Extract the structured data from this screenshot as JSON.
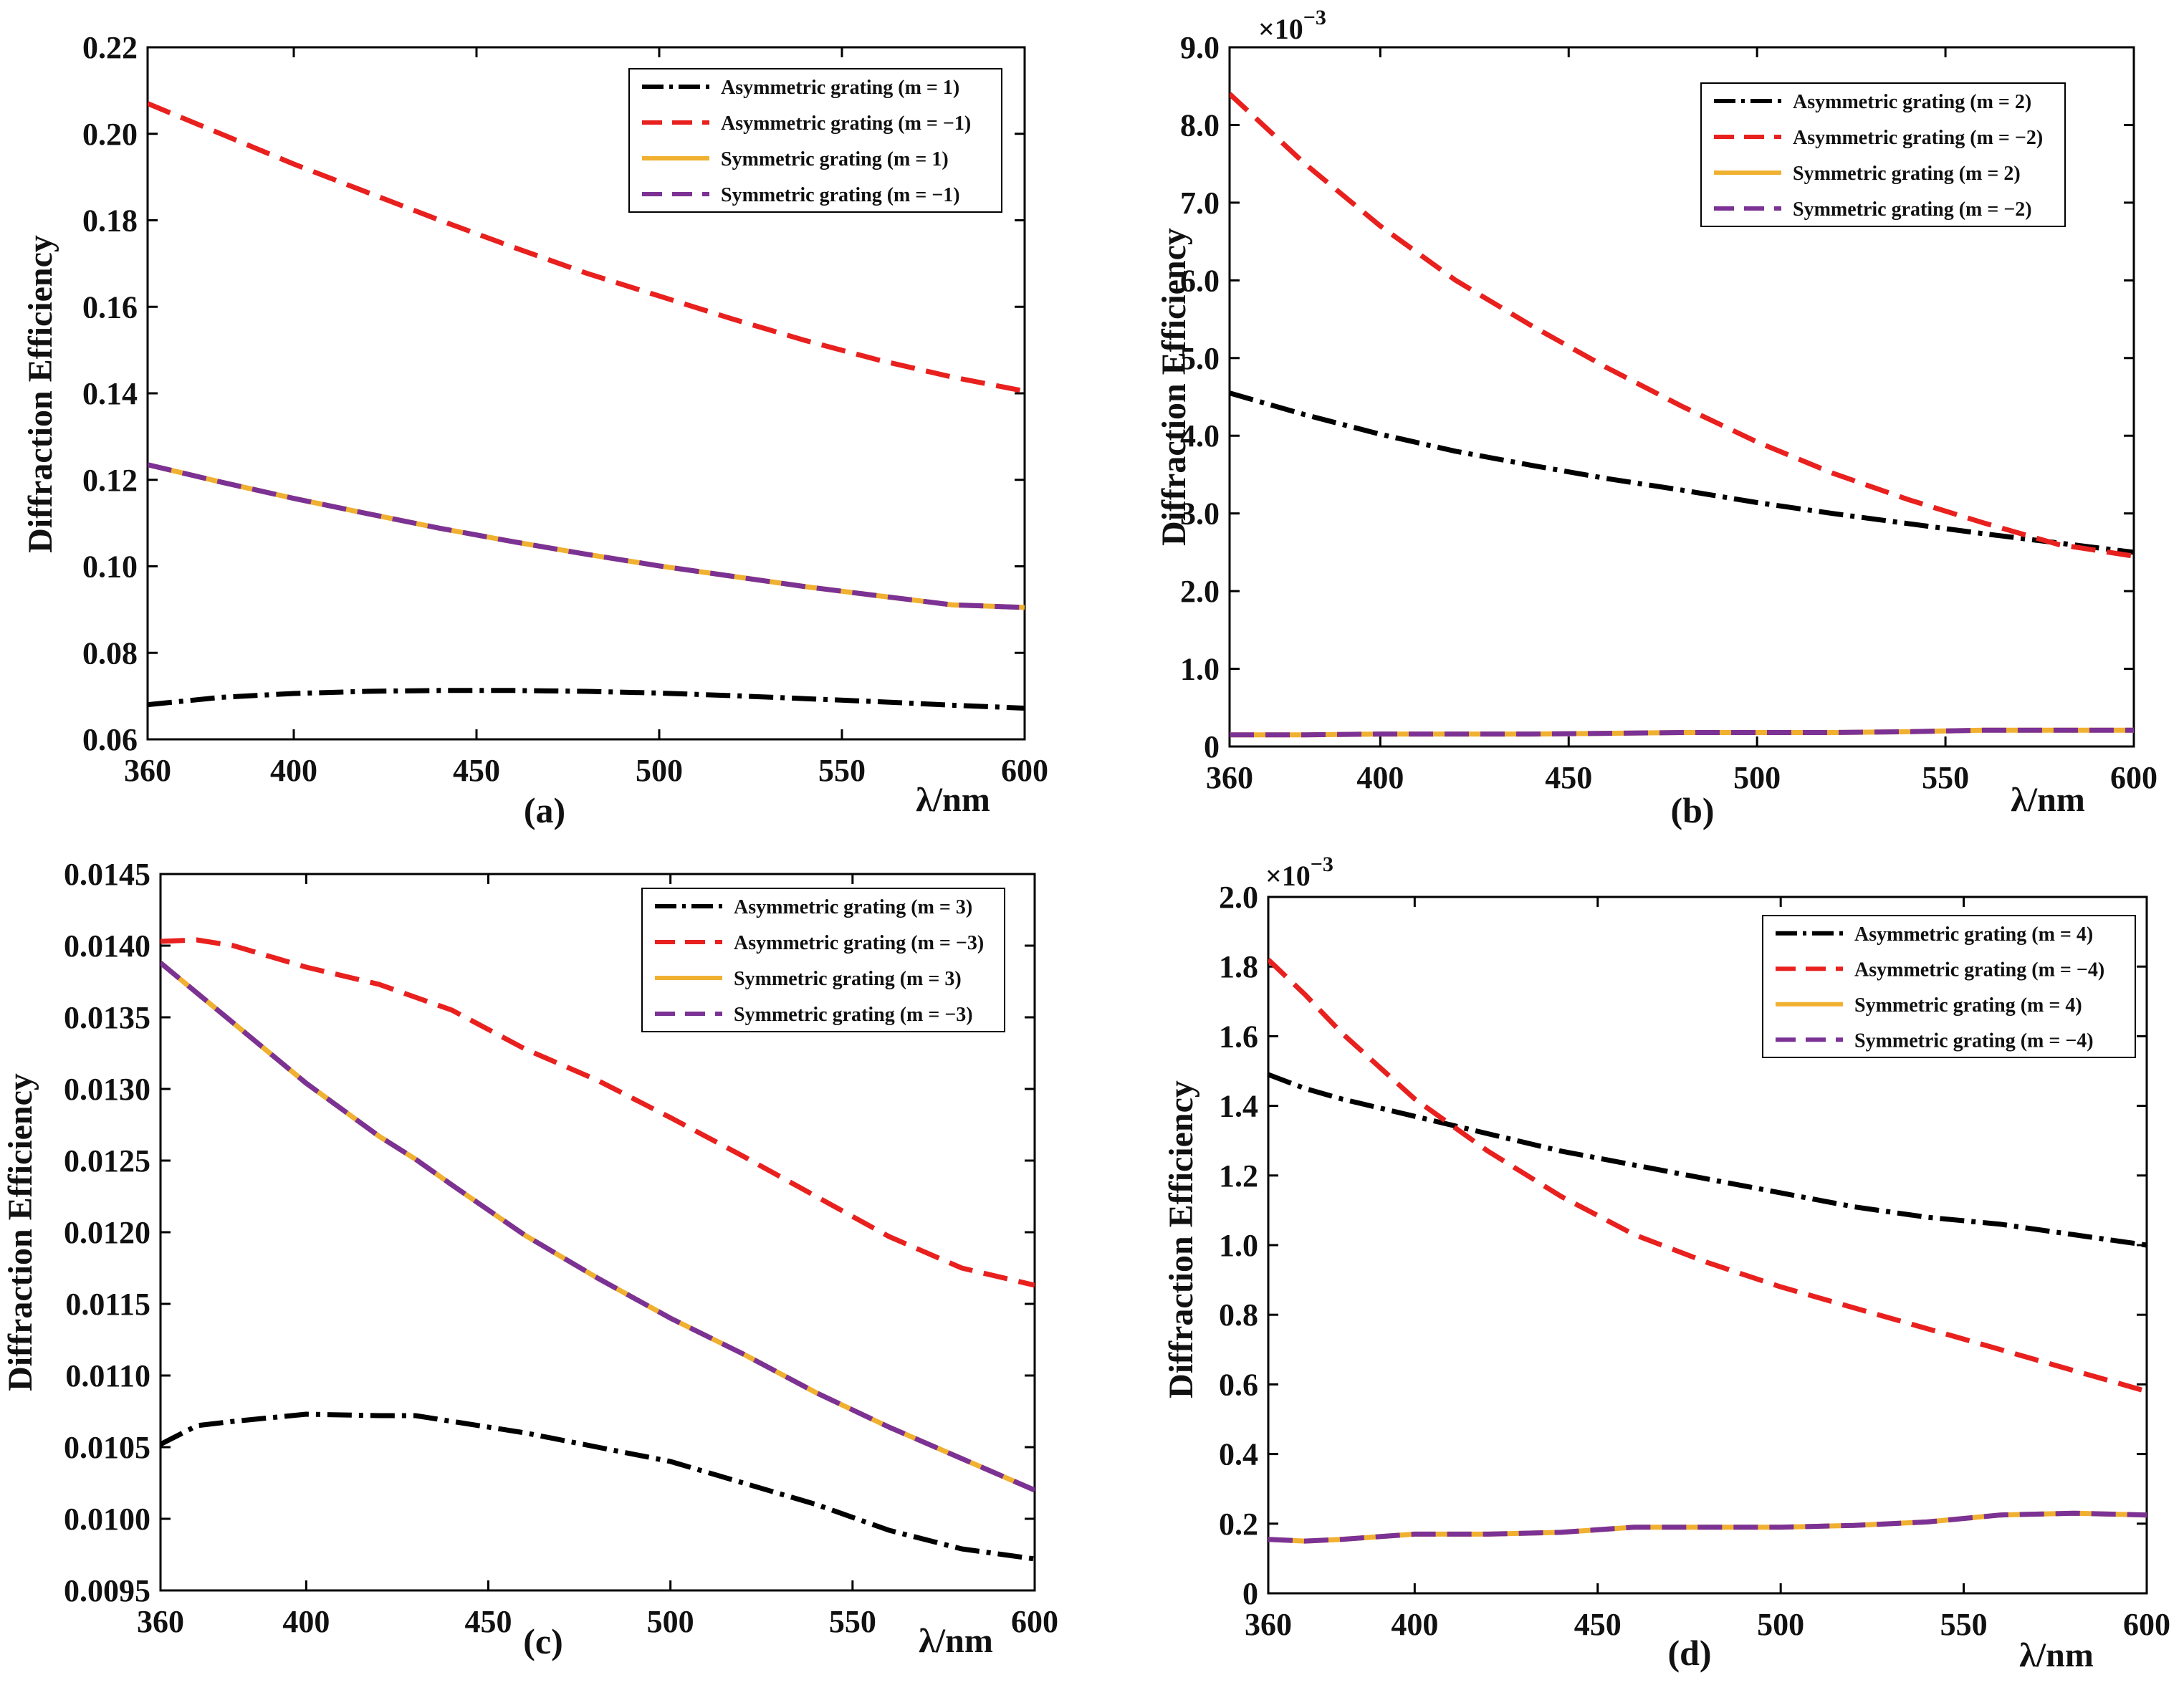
{
  "figure": {
    "colors": {
      "asym_pos": "#000000",
      "asym_neg": "#e8201e",
      "sym_pos": "#f0b030",
      "sym_neg": "#7b3294",
      "axis": "#000000"
    },
    "common_xlabel": "λ/nm"
  },
  "chart_data": [
    {
      "id": "a",
      "type": "line",
      "panel_label": "(a)",
      "xlabel": "λ/nm",
      "ylabel": "Diffraction Efficiency",
      "exponent_label": "",
      "xlim": [
        360,
        600
      ],
      "ylim": [
        0.06,
        0.22
      ],
      "xticks": [
        360,
        400,
        450,
        500,
        550,
        600
      ],
      "yticks": [
        0.06,
        0.08,
        0.1,
        0.12,
        0.14,
        0.16,
        0.18,
        0.2,
        0.22
      ],
      "ytick_labels": [
        "0.06",
        "0.08",
        "0.10",
        "0.12",
        "0.14",
        "0.16",
        "0.18",
        "0.20",
        "0.22"
      ],
      "legend_position": "top-right",
      "x": [
        360,
        380,
        400,
        420,
        440,
        460,
        480,
        500,
        520,
        540,
        560,
        580,
        600
      ],
      "series": [
        {
          "name": "Asymmetric grating (m = 1)",
          "style": "dashdot",
          "color": "#000000",
          "values": [
            0.068,
            0.0697,
            0.0706,
            0.0711,
            0.0713,
            0.0713,
            0.0711,
            0.0707,
            0.0701,
            0.0694,
            0.0687,
            0.0679,
            0.0672
          ]
        },
        {
          "name": "Asymmetric grating (m = −1)",
          "style": "dashed",
          "color": "#e8201e",
          "values": [
            0.207,
            0.2,
            0.193,
            0.1865,
            0.18,
            0.1738,
            0.1678,
            0.1625,
            0.1572,
            0.1522,
            0.1477,
            0.1438,
            0.1405
          ]
        },
        {
          "name": "Symmetric grating (m = 1)",
          "style": "solid",
          "color": "#f0b030",
          "values": [
            0.1235,
            0.1195,
            0.1157,
            0.1122,
            0.1088,
            0.1057,
            0.1028,
            0.1001,
            0.0977,
            0.0953,
            0.0932,
            0.0911,
            0.0905
          ]
        },
        {
          "name": "Symmetric grating (m = −1)",
          "style": "dashed",
          "color": "#7b3294",
          "values": [
            0.1235,
            0.1195,
            0.1157,
            0.1122,
            0.1088,
            0.1057,
            0.1028,
            0.1001,
            0.0977,
            0.0953,
            0.0932,
            0.0911,
            0.0905
          ]
        }
      ]
    },
    {
      "id": "b",
      "type": "line",
      "panel_label": "(b)",
      "xlabel": "λ/nm",
      "ylabel": "Diffraction Efficiency",
      "exponent_label": "×10",
      "exponent_power": "−3",
      "xlim": [
        360,
        600
      ],
      "ylim": [
        0,
        9.0
      ],
      "xticks": [
        360,
        400,
        450,
        500,
        550,
        600
      ],
      "yticks": [
        0,
        1,
        2,
        3,
        4,
        5,
        6,
        7,
        8,
        9
      ],
      "ytick_labels": [
        "0",
        "1.0",
        "2.0",
        "3.0",
        "4.0",
        "5.0",
        "6.0",
        "7.0",
        "8.0",
        "9.0"
      ],
      "legend_position": "top-right",
      "x": [
        360,
        380,
        400,
        420,
        440,
        460,
        480,
        500,
        520,
        540,
        560,
        580,
        600
      ],
      "series": [
        {
          "name": "Asymmetric grating (m = 2)",
          "style": "dashdot",
          "color": "#000000",
          "values": [
            4.55,
            4.27,
            4.02,
            3.8,
            3.62,
            3.45,
            3.3,
            3.14,
            3.0,
            2.87,
            2.74,
            2.62,
            2.5
          ]
        },
        {
          "name": "Asymmetric grating (m = −2)",
          "style": "dashed",
          "color": "#e8201e",
          "values": [
            8.4,
            7.5,
            6.7,
            6.0,
            5.42,
            4.88,
            4.38,
            3.92,
            3.52,
            3.18,
            2.88,
            2.6,
            2.45
          ]
        },
        {
          "name": "Symmetric grating (m = 2)",
          "style": "solid",
          "color": "#f0b030",
          "values": [
            0.15,
            0.15,
            0.16,
            0.16,
            0.16,
            0.17,
            0.18,
            0.18,
            0.18,
            0.19,
            0.21,
            0.21,
            0.21
          ]
        },
        {
          "name": "Symmetric grating (m = −2)",
          "style": "dashed",
          "color": "#7b3294",
          "values": [
            0.15,
            0.15,
            0.16,
            0.16,
            0.16,
            0.17,
            0.18,
            0.18,
            0.18,
            0.19,
            0.21,
            0.21,
            0.21
          ]
        }
      ]
    },
    {
      "id": "c",
      "type": "line",
      "panel_label": "(c)",
      "xlabel": "λ/nm",
      "ylabel": "Diffraction Efficiency",
      "exponent_label": "",
      "xlim": [
        360,
        600
      ],
      "ylim": [
        0.0095,
        0.0145
      ],
      "xticks": [
        360,
        400,
        450,
        500,
        550,
        600
      ],
      "yticks": [
        0.0095,
        0.01,
        0.0105,
        0.011,
        0.0115,
        0.012,
        0.0125,
        0.013,
        0.0135,
        0.014,
        0.0145
      ],
      "ytick_labels": [
        "0.0095",
        "0.0100",
        "0.0105",
        "0.0110",
        "0.0115",
        "0.0120",
        "0.0125",
        "0.0130",
        "0.0135",
        "0.0140",
        "0.0145"
      ],
      "legend_position": "top-right",
      "x": [
        360,
        370,
        380,
        400,
        420,
        430,
        440,
        460,
        480,
        500,
        520,
        540,
        560,
        580,
        600
      ],
      "series": [
        {
          "name": "Asymmetric grating (m = 3)",
          "style": "dashdot",
          "color": "#000000",
          "values": [
            0.01052,
            0.01065,
            0.01068,
            0.01073,
            0.01072,
            0.01072,
            0.01068,
            0.0106,
            0.0105,
            0.0104,
            0.01025,
            0.0101,
            0.00992,
            0.00979,
            0.00972
          ]
        },
        {
          "name": "Asymmetric grating (m = −3)",
          "style": "dashed",
          "color": "#e8201e",
          "values": [
            0.01403,
            0.01404,
            0.014,
            0.01385,
            0.01373,
            0.01364,
            0.01355,
            0.01328,
            0.01306,
            0.0128,
            0.01253,
            0.01225,
            0.01197,
            0.01175,
            0.01163
          ]
        },
        {
          "name": "Symmetric grating (m = 3)",
          "style": "solid",
          "color": "#f0b030",
          "values": [
            0.01388,
            0.01367,
            0.01346,
            0.01304,
            0.01267,
            0.01251,
            0.01233,
            0.01198,
            0.01168,
            0.0114,
            0.01115,
            0.01088,
            0.01064,
            0.01042,
            0.0102
          ]
        },
        {
          "name": "Symmetric grating (m = −3)",
          "style": "dashed",
          "color": "#7b3294",
          "values": [
            0.01388,
            0.01367,
            0.01346,
            0.01304,
            0.01267,
            0.01251,
            0.01233,
            0.01198,
            0.01168,
            0.0114,
            0.01115,
            0.01088,
            0.01064,
            0.01042,
            0.0102
          ]
        }
      ]
    },
    {
      "id": "d",
      "type": "line",
      "panel_label": "(d)",
      "xlabel": "λ/nm",
      "ylabel": "Diffraction Efficiency",
      "exponent_label": "×10",
      "exponent_power": "−3",
      "xlim": [
        360,
        600
      ],
      "ylim": [
        0,
        2.0
      ],
      "xticks": [
        360,
        400,
        450,
        500,
        550,
        600
      ],
      "yticks": [
        0,
        0.2,
        0.4,
        0.6,
        0.8,
        1.0,
        1.2,
        1.4,
        1.6,
        1.8,
        2.0
      ],
      "ytick_labels": [
        "0",
        "0.2",
        "0.4",
        "0.6",
        "0.8",
        "1.0",
        "1.2",
        "1.4",
        "1.6",
        "1.8",
        "2.0"
      ],
      "legend_position": "top-right",
      "x": [
        360,
        370,
        380,
        400,
        420,
        440,
        460,
        480,
        500,
        520,
        540,
        560,
        580,
        600
      ],
      "series": [
        {
          "name": "Asymmetric grating (m = 4)",
          "style": "dashdot",
          "color": "#000000",
          "values": [
            1.49,
            1.45,
            1.42,
            1.37,
            1.32,
            1.27,
            1.23,
            1.19,
            1.15,
            1.11,
            1.08,
            1.06,
            1.03,
            1.0
          ]
        },
        {
          "name": "Asymmetric grating (m = −4)",
          "style": "dashed",
          "color": "#e8201e",
          "values": [
            1.82,
            1.72,
            1.61,
            1.42,
            1.27,
            1.14,
            1.03,
            0.95,
            0.88,
            0.82,
            0.76,
            0.7,
            0.64,
            0.58
          ]
        },
        {
          "name": "Symmetric grating (m = 4)",
          "style": "solid",
          "color": "#f0b030",
          "values": [
            0.155,
            0.15,
            0.155,
            0.17,
            0.17,
            0.175,
            0.19,
            0.19,
            0.19,
            0.195,
            0.205,
            0.225,
            0.23,
            0.225
          ]
        },
        {
          "name": "Symmetric grating (m = −4)",
          "style": "dashed",
          "color": "#7b3294",
          "values": [
            0.155,
            0.15,
            0.155,
            0.17,
            0.17,
            0.175,
            0.19,
            0.19,
            0.19,
            0.195,
            0.205,
            0.225,
            0.23,
            0.225
          ]
        }
      ]
    }
  ]
}
